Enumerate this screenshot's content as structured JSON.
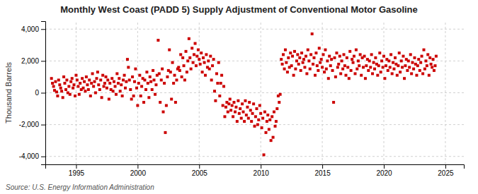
{
  "chart_data": {
    "type": "scatter",
    "title": "Monthly West Coast (PADD 5) Supply Adjustment of Conventional Motor Gasoline",
    "ylabel": "Thousand Barrels",
    "annotations": [
      "Source: U.S. Energy Information Administration"
    ],
    "color": "#cc0000",
    "marker": "square",
    "grid": true,
    "xlim": [
      1992.5,
      2026.5
    ],
    "ylim": [
      -4500,
      4500
    ],
    "xticks": [
      1995,
      2000,
      2005,
      2010,
      2015,
      2020,
      2025
    ],
    "yticks": [
      {
        "value": -4000,
        "label": "-4,000"
      },
      {
        "value": -2000,
        "label": "-2,000"
      },
      0,
      {
        "value": 2000,
        "label": "2,000"
      },
      {
        "value": 4000,
        "label": "4,000"
      }
    ],
    "x": [
      1993.0,
      1993.08,
      1993.17,
      1993.25,
      1993.33,
      1993.42,
      1993.5,
      1993.58,
      1993.67,
      1993.75,
      1993.83,
      1993.92,
      1994.0,
      1994.08,
      1994.17,
      1994.25,
      1994.33,
      1994.42,
      1994.5,
      1994.58,
      1994.67,
      1994.75,
      1994.83,
      1994.92,
      1995.0,
      1995.08,
      1995.17,
      1995.25,
      1995.33,
      1995.42,
      1995.5,
      1995.58,
      1995.67,
      1995.75,
      1995.83,
      1995.92,
      1996.0,
      1996.08,
      1996.17,
      1996.25,
      1996.33,
      1996.42,
      1996.5,
      1996.58,
      1996.67,
      1996.75,
      1996.83,
      1996.92,
      1997.0,
      1997.08,
      1997.17,
      1997.25,
      1997.33,
      1997.42,
      1997.5,
      1997.58,
      1997.67,
      1997.75,
      1997.83,
      1997.92,
      1998.0,
      1998.08,
      1998.17,
      1998.25,
      1998.33,
      1998.42,
      1998.5,
      1998.58,
      1998.67,
      1998.75,
      1998.83,
      1998.92,
      1999.0,
      1999.08,
      1999.17,
      1999.25,
      1999.33,
      1999.42,
      1999.5,
      1999.58,
      1999.67,
      1999.75,
      1999.83,
      1999.92,
      2000.0,
      2000.08,
      2000.17,
      2000.25,
      2000.33,
      2000.42,
      2000.5,
      2000.58,
      2000.67,
      2000.75,
      2000.83,
      2000.92,
      2001.0,
      2001.08,
      2001.17,
      2001.25,
      2001.33,
      2001.42,
      2001.5,
      2001.58,
      2001.67,
      2001.75,
      2001.83,
      2001.92,
      2002.0,
      2002.08,
      2002.17,
      2002.25,
      2002.33,
      2002.42,
      2002.5,
      2002.58,
      2002.67,
      2002.75,
      2002.83,
      2002.92,
      2003.0,
      2003.08,
      2003.17,
      2003.25,
      2003.33,
      2003.42,
      2003.5,
      2003.58,
      2003.67,
      2003.75,
      2003.83,
      2003.92,
      2004.0,
      2004.08,
      2004.17,
      2004.25,
      2004.33,
      2004.42,
      2004.5,
      2004.58,
      2004.67,
      2004.75,
      2004.83,
      2004.92,
      2005.0,
      2005.08,
      2005.17,
      2005.25,
      2005.33,
      2005.42,
      2005.5,
      2005.58,
      2005.67,
      2005.75,
      2005.83,
      2005.92,
      2006.0,
      2006.08,
      2006.17,
      2006.25,
      2006.33,
      2006.42,
      2006.5,
      2006.58,
      2006.67,
      2006.75,
      2006.83,
      2006.92,
      2007.0,
      2007.08,
      2007.17,
      2007.25,
      2007.33,
      2007.42,
      2007.5,
      2007.58,
      2007.67,
      2007.75,
      2007.83,
      2007.92,
      2008.0,
      2008.08,
      2008.17,
      2008.25,
      2008.33,
      2008.42,
      2008.5,
      2008.58,
      2008.67,
      2008.75,
      2008.83,
      2008.92,
      2009.0,
      2009.08,
      2009.17,
      2009.25,
      2009.33,
      2009.42,
      2009.5,
      2009.58,
      2009.67,
      2009.75,
      2009.83,
      2009.92,
      2010.0,
      2010.08,
      2010.17,
      2010.25,
      2010.33,
      2010.42,
      2010.5,
      2010.58,
      2010.67,
      2010.75,
      2010.83,
      2010.92,
      2011.0,
      2011.08,
      2011.17,
      2011.25,
      2011.33,
      2011.42,
      2011.5,
      2011.58,
      2011.67,
      2011.75,
      2011.83,
      2011.92,
      2012.0,
      2012.08,
      2012.17,
      2012.25,
      2012.33,
      2012.42,
      2012.5,
      2012.58,
      2012.67,
      2012.75,
      2012.83,
      2012.92,
      2013.0,
      2013.08,
      2013.17,
      2013.25,
      2013.33,
      2013.42,
      2013.5,
      2013.58,
      2013.67,
      2013.75,
      2013.83,
      2013.92,
      2014.0,
      2014.08,
      2014.17,
      2014.25,
      2014.33,
      2014.42,
      2014.5,
      2014.58,
      2014.67,
      2014.75,
      2014.83,
      2014.92,
      2015.0,
      2015.08,
      2015.17,
      2015.25,
      2015.33,
      2015.42,
      2015.5,
      2015.58,
      2015.67,
      2015.75,
      2015.83,
      2015.92,
      2016.0,
      2016.08,
      2016.17,
      2016.25,
      2016.33,
      2016.42,
      2016.5,
      2016.58,
      2016.67,
      2016.75,
      2016.83,
      2016.92,
      2017.0,
      2017.08,
      2017.17,
      2017.25,
      2017.33,
      2017.42,
      2017.5,
      2017.58,
      2017.67,
      2017.75,
      2017.83,
      2017.92,
      2018.0,
      2018.08,
      2018.17,
      2018.25,
      2018.33,
      2018.42,
      2018.5,
      2018.58,
      2018.67,
      2018.75,
      2018.83,
      2018.92,
      2019.0,
      2019.08,
      2019.17,
      2019.25,
      2019.33,
      2019.42,
      2019.5,
      2019.58,
      2019.67,
      2019.75,
      2019.83,
      2019.92,
      2020.0,
      2020.08,
      2020.17,
      2020.25,
      2020.33,
      2020.42,
      2020.5,
      2020.58,
      2020.67,
      2020.75,
      2020.83,
      2020.92,
      2021.0,
      2021.08,
      2021.17,
      2021.25,
      2021.33,
      2021.42,
      2021.5,
      2021.58,
      2021.67,
      2021.75,
      2021.83,
      2021.92,
      2022.0,
      2022.08,
      2022.17,
      2022.25,
      2022.33,
      2022.42,
      2022.5,
      2022.58,
      2022.67,
      2022.75,
      2022.83,
      2022.92,
      2023.0,
      2023.08,
      2023.17,
      2023.25,
      2023.33,
      2023.42,
      2023.5,
      2023.58,
      2023.67,
      2023.75,
      2023.83,
      2023.92,
      2024.0,
      2024.08,
      2024.17,
      2024.25
    ],
    "values": [
      900,
      600,
      400,
      150,
      700,
      50,
      -200,
      800,
      500,
      300,
      100,
      -300,
      1000,
      600,
      200,
      800,
      0,
      400,
      -100,
      700,
      900,
      300,
      500,
      -200,
      1100,
      800,
      400,
      -100,
      600,
      200,
      900,
      300,
      700,
      100,
      1000,
      500,
      200,
      800,
      -200,
      600,
      1200,
      400,
      700,
      0,
      900,
      1300,
      500,
      200,
      800,
      -300,
      1100,
      400,
      600,
      1000,
      300,
      800,
      -400,
      600,
      200,
      900,
      100,
      700,
      400,
      -100,
      1200,
      600,
      900,
      100,
      500,
      -200,
      800,
      1100,
      300,
      700,
      2100,
      1600,
      800,
      200,
      -400,
      1000,
      -200,
      700,
      1500,
      300,
      -800,
      600,
      1100,
      -200,
      400,
      900,
      -600,
      800,
      200,
      1300,
      600,
      -300,
      1000,
      700,
      200,
      1400,
      800,
      -100,
      500,
      1100,
      3300,
      1200,
      -600,
      800,
      1500,
      -1200,
      600,
      -2500,
      -800,
      1000,
      1400,
      2700,
      1300,
      -400,
      1900,
      600,
      1100,
      -600,
      800,
      1500,
      1600,
      1400,
      2400,
      1000,
      2200,
      1700,
      800,
      2600,
      1300,
      2000,
      3400,
      2200,
      1500,
      2800,
      1900,
      2400,
      3100,
      1700,
      2300,
      2700,
      2100,
      1800,
      2500,
      1300,
      2200,
      1900,
      1100,
      2400,
      1600,
      2000,
      1500,
      2300,
      800,
      1700,
      2100,
      100,
      -500,
      1200,
      600,
      1900,
      -200,
      600,
      1100,
      -800,
      400,
      -1500,
      -900,
      -600,
      -1200,
      -700,
      -400,
      -1100,
      -800,
      -1500,
      -600,
      -1200,
      -900,
      -1800,
      -500,
      -1300,
      -1000,
      -1600,
      -700,
      -1200,
      -1800,
      -500,
      -1400,
      -900,
      -1600,
      -600,
      -1100,
      -1800,
      -1300,
      -700,
      -2100,
      -1500,
      -1000,
      -2000,
      -1700,
      -800,
      -1300,
      -2200,
      -1600,
      -3900,
      -1200,
      -2500,
      -1800,
      -1400,
      -2300,
      -1700,
      -3000,
      -1500,
      -2800,
      -1200,
      -2100,
      -1800,
      -1000,
      -200,
      -600,
      -100,
      2100,
      1800,
      2400,
      1500,
      2700,
      1900,
      1300,
      2200,
      1600,
      2500,
      1700,
      2300,
      1100,
      2600,
      1500,
      2000,
      2400,
      1800,
      2200,
      1400,
      2500,
      1900,
      2100,
      1600,
      2300,
      1200,
      2700,
      2000,
      1500,
      2400,
      3700,
      1800,
      2200,
      1100,
      2500,
      1700,
      1400,
      2800,
      1900,
      2100,
      1600,
      2400,
      1300,
      2700,
      1500,
      2000,
      900,
      2300,
      1700,
      2100,
      1400,
      -600,
      2200,
      1000,
      2500,
      1600,
      1800,
      2300,
      1200,
      2000,
      1500,
      2400,
      1700,
      1100,
      2200,
      1600,
      900,
      2600,
      1400,
      2100,
      1900,
      2300,
      1200,
      2700,
      1500,
      2000,
      1700,
      2400,
      1100,
      2200,
      1600,
      2300,
      900,
      1700,
      2100,
      1400,
      2000,
      1600,
      2400,
      1200,
      1900,
      1500,
      2200,
      1800,
      1100,
      1700,
      2500,
      1300,
      2000,
      1600,
      2300,
      900,
      1700,
      2100,
      1400,
      2000,
      1600,
      2400,
      1200,
      1900,
      1500,
      2200,
      1800,
      1100,
      1700,
      2500,
      1300,
      2000,
      1600,
      2300,
      900,
      1700,
      2100,
      1400,
      2000,
      1600,
      2400,
      1200,
      1900,
      1500,
      2200,
      1800,
      1100,
      1700,
      2100,
      1400,
      1900,
      2300,
      1200,
      2700,
      1500,
      2000,
      1700,
      2400,
      1100,
      2200,
      1800,
      1600,
      2100,
      1400,
      1700,
      2300
    ]
  }
}
